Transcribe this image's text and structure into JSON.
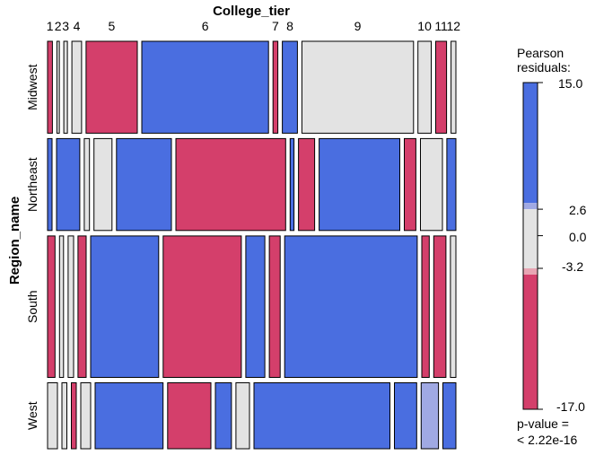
{
  "chart_data": {
    "type": "mosaic",
    "xlabel": "College_tier",
    "ylabel": "Region_name",
    "column_labels": [
      "1",
      "2",
      "3",
      "4",
      "5",
      "6",
      "7",
      "8",
      "9",
      "10",
      "11",
      "12"
    ],
    "row_labels": [
      "Midwest",
      "Northeast",
      "South",
      "West"
    ],
    "row_shares": [
      0.195,
      0.195,
      0.3,
      0.14
    ],
    "column_shares": {
      "Midwest": [
        0.008,
        0.004,
        0.006,
        0.016,
        0.085,
        0.21,
        0.008,
        0.025,
        0.185,
        0.022,
        0.018,
        0.008
      ],
      "Northeast": [
        0.007,
        0.036,
        0.008,
        0.028,
        0.085,
        0.17,
        0.006,
        0.025,
        0.125,
        0.018,
        0.034,
        0.014
      ],
      "South": [
        0.011,
        0.006,
        0.008,
        0.012,
        0.1,
        0.115,
        0.028,
        0.016,
        0.195,
        0.011,
        0.018,
        0.008
      ],
      "West": [
        0.016,
        0.008,
        0.008,
        0.016,
        0.11,
        0.07,
        0.026,
        0.022,
        0.22,
        0.036,
        0.028,
        0.021
      ]
    },
    "pearson_residuals": {
      "Midwest": [
        -6,
        0,
        0,
        0,
        -15,
        15,
        -6,
        9,
        0,
        0,
        -9,
        -3
      ],
      "Northeast": [
        5,
        10,
        0,
        0,
        9,
        -15,
        15,
        -6,
        9,
        -15,
        0,
        9
      ],
      "South": [
        -9,
        0,
        0,
        -9,
        15,
        -17,
        9,
        -9,
        15,
        -9,
        -9,
        -3
      ],
      "West": [
        0,
        0,
        -9,
        0,
        5,
        -15,
        9,
        0,
        15,
        9,
        3,
        9
      ]
    },
    "legend": {
      "title_line1": "Pearson",
      "title_line2": "residuals:",
      "max_label": "15.0",
      "upper_cut_label": "2.6",
      "zero_label": "0.0",
      "lower_cut_label": "-3.2",
      "min_label": "-17.0",
      "max": 15.0,
      "upper_cut": 2.6,
      "lower_cut": -3.2,
      "min": -17.0,
      "pvalue_line1": "p-value =",
      "pvalue_line2": "< 2.22e-16"
    },
    "colors": {
      "positive_strong": "#4a6ee0",
      "positive_weak": "#a0a9e3",
      "neutral": "#e3e3e3",
      "negative_weak": "#e8a5b3",
      "negative_strong": "#d43f6b"
    }
  }
}
